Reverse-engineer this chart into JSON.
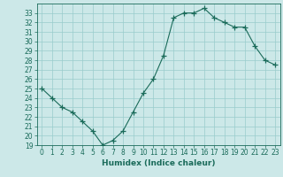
{
  "x": [
    0,
    1,
    2,
    3,
    4,
    5,
    6,
    7,
    8,
    9,
    10,
    11,
    12,
    13,
    14,
    15,
    16,
    17,
    18,
    19,
    20,
    21,
    22,
    23
  ],
  "y": [
    25.0,
    24.0,
    23.0,
    22.5,
    21.5,
    20.5,
    19.0,
    19.5,
    20.5,
    22.5,
    24.5,
    26.0,
    28.5,
    32.5,
    33.0,
    33.0,
    33.5,
    32.5,
    32.0,
    31.5,
    31.5,
    29.5,
    28.0,
    27.5
  ],
  "xlabel": "Humidex (Indice chaleur)",
  "ylim": [
    19,
    34
  ],
  "xlim": [
    -0.5,
    23.5
  ],
  "yticks": [
    19,
    20,
    21,
    22,
    23,
    24,
    25,
    26,
    27,
    28,
    29,
    30,
    31,
    32,
    33
  ],
  "xticks": [
    0,
    1,
    2,
    3,
    4,
    5,
    6,
    7,
    8,
    9,
    10,
    11,
    12,
    13,
    14,
    15,
    16,
    17,
    18,
    19,
    20,
    21,
    22,
    23
  ],
  "line_color": "#1a6b5a",
  "marker": "+",
  "bg_color": "#cce8e8",
  "grid_color": "#99cccc"
}
